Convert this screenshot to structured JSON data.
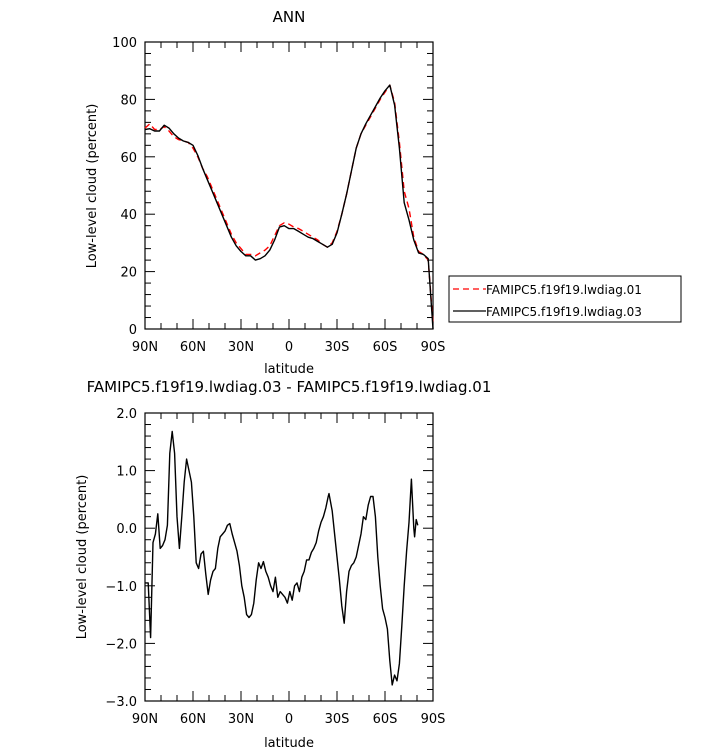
{
  "chart_data": [
    {
      "type": "line",
      "title": "ANN",
      "xlabel": "latitude",
      "ylabel": "Low-level cloud (percent)",
      "xlim": [
        90,
        -90
      ],
      "ylim": [
        0,
        100
      ],
      "x_ticks": [
        90,
        60,
        30,
        0,
        -30,
        -60,
        -90
      ],
      "x_tick_labels": [
        "90N",
        "60N",
        "30N",
        "0",
        "30S",
        "60S",
        "90S"
      ],
      "y_ticks": [
        0,
        20,
        40,
        60,
        80,
        100
      ],
      "y_tick_labels": [
        "0",
        "20",
        "40",
        "60",
        "80",
        "100"
      ],
      "legend_position": "right",
      "series": [
        {
          "name": "FAMIPC5.f19f19.lwdiag.01",
          "color": "#ff0000",
          "dash": "dashed",
          "points": [
            [
              90,
              70
            ],
            [
              87,
              71.5
            ],
            [
              84,
              69.5
            ],
            [
              81,
              69.5
            ],
            [
              78,
              70.5
            ],
            [
              75,
              69
            ],
            [
              72,
              67
            ],
            [
              69,
              66
            ],
            [
              66,
              65.5
            ],
            [
              63,
              65
            ],
            [
              60,
              63
            ],
            [
              57,
              60
            ],
            [
              54,
              56
            ],
            [
              51,
              53
            ],
            [
              48,
              49
            ],
            [
              45,
              45
            ],
            [
              42,
              41
            ],
            [
              39,
              37
            ],
            [
              36,
              33
            ],
            [
              33,
              30
            ],
            [
              30,
              28
            ],
            [
              27,
              26
            ],
            [
              24,
              26
            ],
            [
              21,
              25.5
            ],
            [
              18,
              26.5
            ],
            [
              15,
              27.5
            ],
            [
              12,
              29
            ],
            [
              9,
              32.5
            ],
            [
              6,
              36
            ],
            [
              3,
              37
            ],
            [
              0,
              36.5
            ],
            [
              -3,
              35.5
            ],
            [
              -6,
              35
            ],
            [
              -9,
              34
            ],
            [
              -12,
              33
            ],
            [
              -15,
              32
            ],
            [
              -18,
              31
            ],
            [
              -21,
              29.5
            ],
            [
              -24,
              28.5
            ],
            [
              -27,
              30
            ],
            [
              -30,
              34
            ],
            [
              -33,
              40
            ],
            [
              -36,
              47
            ],
            [
              -39,
              55
            ],
            [
              -42,
              63
            ],
            [
              -45,
              68
            ],
            [
              -48,
              71
            ],
            [
              -51,
              74
            ],
            [
              -54,
              77
            ],
            [
              -57,
              80
            ],
            [
              -60,
              82.5
            ],
            [
              -63,
              85
            ],
            [
              -66,
              79
            ],
            [
              -69,
              65
            ],
            [
              -72,
              48
            ],
            [
              -75,
              42
            ],
            [
              -78,
              32
            ],
            [
              -81,
              27
            ],
            [
              -84,
              26
            ],
            [
              -87,
              24
            ],
            [
              -90,
              2
            ]
          ]
        },
        {
          "name": "FAMIPC5.f19f19.lwdiag.03",
          "color": "#000000",
          "dash": "solid",
          "points": [
            [
              90,
              69.5
            ],
            [
              87,
              69.8
            ],
            [
              84,
              69
            ],
            [
              81,
              69
            ],
            [
              78,
              71
            ],
            [
              75,
              70
            ],
            [
              72,
              68
            ],
            [
              69,
              66.5
            ],
            [
              66,
              65.5
            ],
            [
              63,
              65
            ],
            [
              60,
              64
            ],
            [
              57,
              60.5
            ],
            [
              54,
              56
            ],
            [
              51,
              52
            ],
            [
              48,
              48
            ],
            [
              45,
              44
            ],
            [
              42,
              40
            ],
            [
              39,
              36
            ],
            [
              36,
              32
            ],
            [
              33,
              29
            ],
            [
              30,
              27
            ],
            [
              27,
              25.5
            ],
            [
              24,
              25.5
            ],
            [
              21,
              24
            ],
            [
              18,
              24.5
            ],
            [
              15,
              25.5
            ],
            [
              12,
              27.5
            ],
            [
              9,
              31
            ],
            [
              6,
              35.5
            ],
            [
              3,
              36
            ],
            [
              0,
              35
            ],
            [
              -3,
              35
            ],
            [
              -6,
              34
            ],
            [
              -9,
              33
            ],
            [
              -12,
              32
            ],
            [
              -15,
              31.5
            ],
            [
              -18,
              30.5
            ],
            [
              -21,
              29.5
            ],
            [
              -24,
              28.5
            ],
            [
              -27,
              29.5
            ],
            [
              -30,
              33.5
            ],
            [
              -33,
              40
            ],
            [
              -36,
              47
            ],
            [
              -39,
              55
            ],
            [
              -42,
              63
            ],
            [
              -45,
              68
            ],
            [
              -48,
              71.5
            ],
            [
              -51,
              74.5
            ],
            [
              -54,
              77.5
            ],
            [
              -57,
              80.5
            ],
            [
              -60,
              83
            ],
            [
              -63,
              85
            ],
            [
              -66,
              78
            ],
            [
              -69,
              63
            ],
            [
              -72,
              44
            ],
            [
              -75,
              38
            ],
            [
              -78,
              31
            ],
            [
              -81,
              26.5
            ],
            [
              -84,
              26
            ],
            [
              -87,
              24.5
            ],
            [
              -90,
              0
            ]
          ]
        }
      ]
    },
    {
      "type": "line",
      "title": "FAMIPC5.f19f19.lwdiag.03 - FAMIPC5.f19f19.lwdiag.01",
      "xlabel": "latitude",
      "ylabel": "Low-level cloud (percent)",
      "xlim": [
        90,
        -90
      ],
      "ylim": [
        -3.0,
        2.0
      ],
      "x_ticks": [
        90,
        60,
        30,
        0,
        -30,
        -60,
        -90
      ],
      "x_tick_labels": [
        "90N",
        "60N",
        "30N",
        "0",
        "30S",
        "60S",
        "90S"
      ],
      "y_ticks": [
        -3,
        -2,
        -1,
        0,
        1,
        2
      ],
      "y_tick_labels": [
        "−3.0",
        "−2.0",
        "−1.0",
        "0.0",
        "1.0",
        "2.0"
      ],
      "series": [
        {
          "color": "#000000",
          "dash": "solid",
          "points": [
            [
              90,
              -0.95
            ],
            [
              88,
              -0.95
            ],
            [
              86.5,
              -1.9
            ],
            [
              85,
              -0.25
            ],
            [
              83.5,
              -0.1
            ],
            [
              82,
              0.25
            ],
            [
              80.5,
              -0.35
            ],
            [
              79,
              -0.3
            ],
            [
              77.5,
              -0.2
            ],
            [
              76,
              0.05
            ],
            [
              74.5,
              1.3
            ],
            [
              73,
              1.68
            ],
            [
              71.5,
              1.3
            ],
            [
              70,
              0.2
            ],
            [
              68.5,
              -0.35
            ],
            [
              67,
              0.2
            ],
            [
              65.5,
              0.8
            ],
            [
              64,
              1.2
            ],
            [
              62.5,
              1.0
            ],
            [
              61,
              0.8
            ],
            [
              59.5,
              0.2
            ],
            [
              58,
              -0.6
            ],
            [
              56.5,
              -0.7
            ],
            [
              55,
              -0.45
            ],
            [
              53.5,
              -0.4
            ],
            [
              52,
              -0.8
            ],
            [
              50.5,
              -1.15
            ],
            [
              49,
              -0.9
            ],
            [
              47.5,
              -0.75
            ],
            [
              46,
              -0.7
            ],
            [
              44.5,
              -0.35
            ],
            [
              43,
              -0.15
            ],
            [
              41.5,
              -0.1
            ],
            [
              40,
              -0.05
            ],
            [
              38.5,
              0.05
            ],
            [
              37,
              0.08
            ],
            [
              35.5,
              -0.1
            ],
            [
              34,
              -0.25
            ],
            [
              32.5,
              -0.4
            ],
            [
              31,
              -0.65
            ],
            [
              29.5,
              -1.0
            ],
            [
              28,
              -1.2
            ],
            [
              26.5,
              -1.5
            ],
            [
              25,
              -1.55
            ],
            [
              23.5,
              -1.5
            ],
            [
              22,
              -1.3
            ],
            [
              20.5,
              -0.9
            ],
            [
              19,
              -0.6
            ],
            [
              17.5,
              -0.7
            ],
            [
              16,
              -0.58
            ],
            [
              14.5,
              -0.75
            ],
            [
              13,
              -0.85
            ],
            [
              11.5,
              -1.0
            ],
            [
              10,
              -1.1
            ],
            [
              8.5,
              -0.85
            ],
            [
              7,
              -1.2
            ],
            [
              5.5,
              -1.1
            ],
            [
              4,
              -1.15
            ],
            [
              2.5,
              -1.2
            ],
            [
              1,
              -1.3
            ],
            [
              -0.5,
              -1.1
            ],
            [
              -2,
              -1.25
            ],
            [
              -3.5,
              -1.0
            ],
            [
              -5,
              -0.95
            ],
            [
              -6.5,
              -1.1
            ],
            [
              -8,
              -0.85
            ],
            [
              -9.5,
              -0.75
            ],
            [
              -11,
              -0.55
            ],
            [
              -12.5,
              -0.55
            ],
            [
              -14,
              -0.42
            ],
            [
              -15.5,
              -0.35
            ],
            [
              -17,
              -0.25
            ],
            [
              -18.5,
              -0.05
            ],
            [
              -20,
              0.1
            ],
            [
              -21.5,
              0.2
            ],
            [
              -23,
              0.35
            ],
            [
              -24.5,
              0.55
            ],
            [
              -25,
              0.6
            ],
            [
              -27,
              0.3
            ],
            [
              -28.5,
              -0.1
            ],
            [
              -30,
              -0.5
            ],
            [
              -31.5,
              -0.9
            ],
            [
              -33,
              -1.35
            ],
            [
              -34.5,
              -1.65
            ],
            [
              -36,
              -1.1
            ],
            [
              -37.5,
              -0.75
            ],
            [
              -39,
              -0.65
            ],
            [
              -40.5,
              -0.6
            ],
            [
              -42,
              -0.5
            ],
            [
              -43.5,
              -0.3
            ],
            [
              -45,
              -0.1
            ],
            [
              -46.5,
              0.2
            ],
            [
              -48,
              0.15
            ],
            [
              -49.5,
              0.4
            ],
            [
              -51,
              0.55
            ],
            [
              -52.5,
              0.55
            ],
            [
              -54,
              0.2
            ],
            [
              -55.5,
              -0.5
            ],
            [
              -57,
              -1.0
            ],
            [
              -58.5,
              -1.4
            ],
            [
              -60,
              -1.55
            ],
            [
              -61.5,
              -1.75
            ],
            [
              -63,
              -2.3
            ],
            [
              -64.5,
              -2.72
            ],
            [
              -66,
              -2.55
            ],
            [
              -67.5,
              -2.65
            ],
            [
              -69,
              -2.35
            ],
            [
              -70.5,
              -1.7
            ],
            [
              -72,
              -1.0
            ],
            [
              -73.5,
              -0.4
            ],
            [
              -75,
              0.1
            ],
            [
              -76.5,
              0.85
            ],
            [
              -78,
              0.0
            ],
            [
              -78.5,
              -0.15
            ],
            [
              -79.5,
              0.15
            ],
            [
              -80.5,
              0.05
            ]
          ]
        }
      ]
    }
  ]
}
